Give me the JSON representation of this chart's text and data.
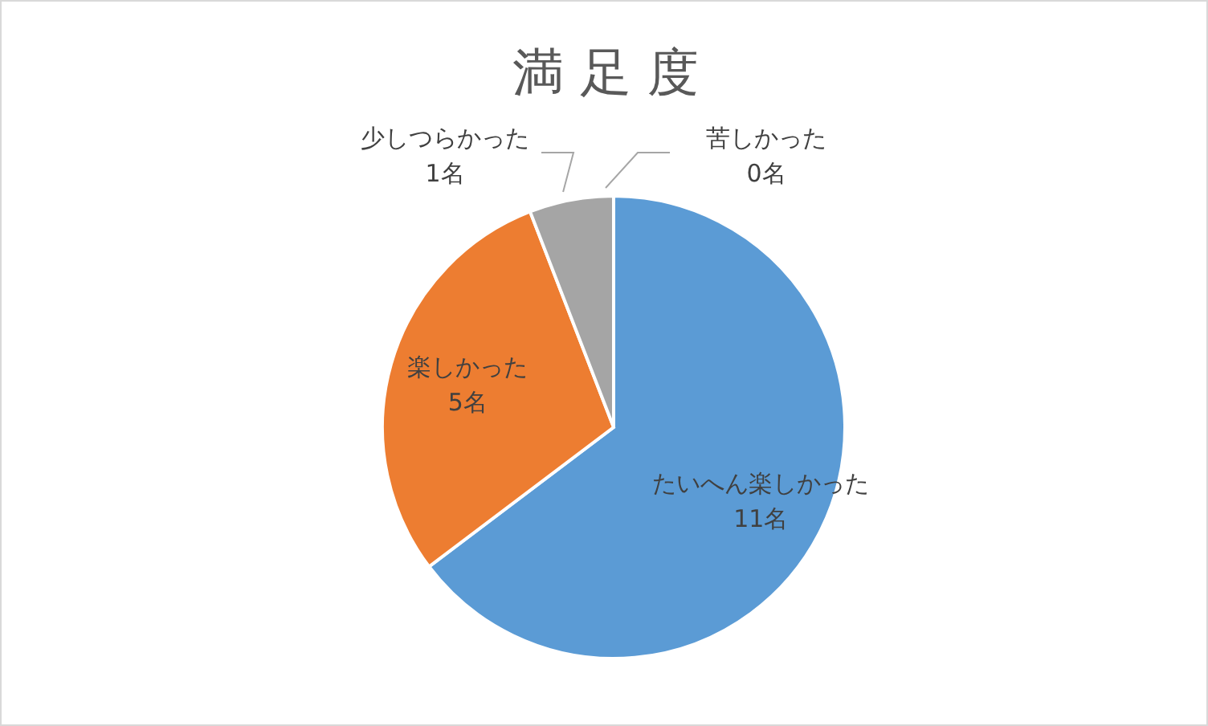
{
  "chart_data": {
    "type": "pie",
    "title": "満 足 度",
    "categories": [
      "たいへん楽しかった",
      "楽しかった",
      "少しつらかった",
      "苦しかった"
    ],
    "values": [
      11,
      5,
      1,
      0
    ],
    "value_labels": [
      "11名",
      "5名",
      "1名",
      "0名"
    ],
    "colors": [
      "#5b9bd5",
      "#ed7d31",
      "#a5a5a5",
      "#ffc000"
    ]
  }
}
